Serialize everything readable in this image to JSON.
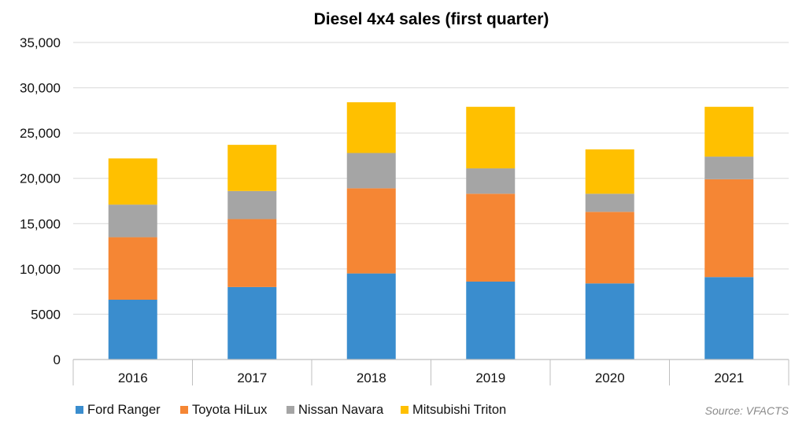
{
  "chart_data": {
    "type": "bar",
    "stacked": true,
    "title": "Diesel 4x4 sales (first quarter)",
    "xlabel": "",
    "ylabel": "",
    "categories": [
      "2016",
      "2017",
      "2018",
      "2019",
      "2020",
      "2021"
    ],
    "ylim": [
      0,
      35000
    ],
    "yticks": [
      0,
      5000,
      10000,
      15000,
      20000,
      25000,
      30000,
      35000
    ],
    "ytick_labels": [
      "0",
      "5000",
      "10,000",
      "15,000",
      "20,000",
      "25,000",
      "30,000",
      "35,000"
    ],
    "grid": true,
    "legend_position": "bottom",
    "series": [
      {
        "name": "Ford Ranger",
        "color": "#3a8dce",
        "values": [
          6600,
          8000,
          9500,
          8600,
          8400,
          9100
        ]
      },
      {
        "name": "Toyota HiLux",
        "color": "#f58634",
        "values": [
          6900,
          7500,
          9400,
          9700,
          7900,
          10800
        ]
      },
      {
        "name": "Nissan Navara",
        "color": "#a5a5a5",
        "values": [
          3600,
          3100,
          3900,
          2800,
          2000,
          2500
        ]
      },
      {
        "name": "Mitsubishi Triton",
        "color": "#ffc000",
        "values": [
          5100,
          5100,
          5600,
          6800,
          4900,
          5500
        ]
      }
    ],
    "source": "Source: VFACTS"
  }
}
